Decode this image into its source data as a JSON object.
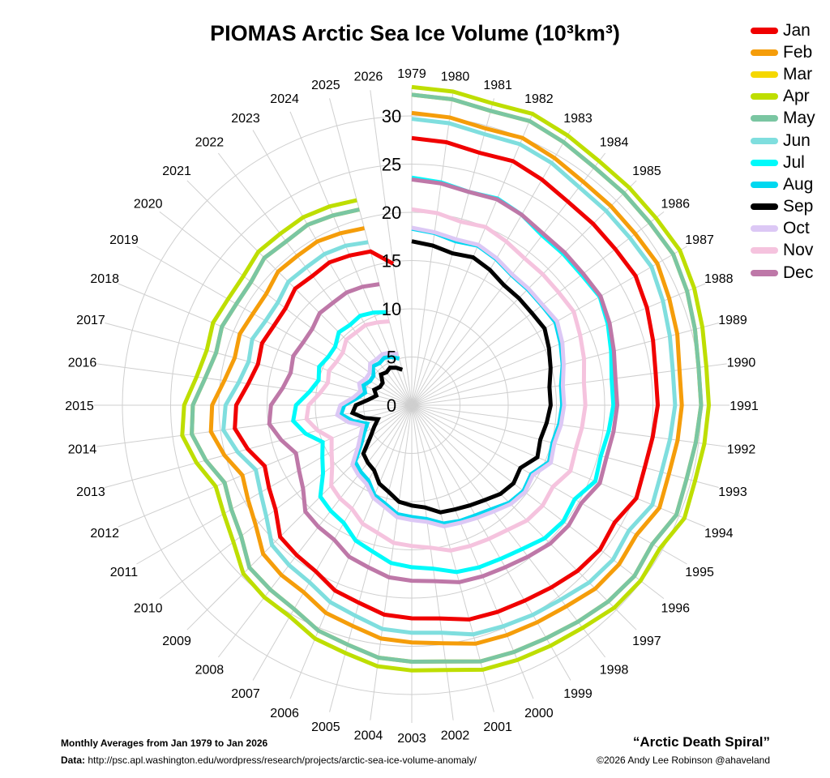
{
  "title": "PIOMAS Arctic Sea Ice Volume (10³km³)",
  "footer": {
    "range": "Monthly Averages from Jan 1979 to Jan 2026",
    "data_label": "Data:",
    "data_url": "http://psc.apl.washington.edu/wordpress/research/projects/arctic-sea-ice-volume-anomaly/",
    "subtitle": "“Arctic Death Spiral”",
    "credit": "©2026 Andy Lee Robinson @ahaveland"
  },
  "chart_data": {
    "type": "line",
    "projection": "polar-spiral",
    "title": "PIOMAS Arctic Sea Ice Volume (10³km³)",
    "radial_ticks": [
      "0",
      "5",
      "10",
      "15",
      "20",
      "25",
      "30"
    ],
    "radial_range": [
      0,
      35
    ],
    "grid": true,
    "legend_position": "top-right",
    "years": [
      1979,
      1980,
      1981,
      1982,
      1983,
      1984,
      1985,
      1986,
      1987,
      1988,
      1989,
      1990,
      1991,
      1992,
      1993,
      1994,
      1995,
      1996,
      1997,
      1998,
      1999,
      2000,
      2001,
      2002,
      2003,
      2004,
      2005,
      2006,
      2007,
      2008,
      2009,
      2010,
      2011,
      2012,
      2013,
      2014,
      2015,
      2016,
      2017,
      2018,
      2019,
      2020,
      2021,
      2022,
      2023,
      2024,
      2025,
      2026
    ],
    "series": [
      {
        "name": "Jan",
        "color": "#f00000",
        "values": [
          27.7,
          27.5,
          27.1,
          27.4,
          27.0,
          26.6,
          26.6,
          26.6,
          26.8,
          26.4,
          25.9,
          25.5,
          25.5,
          25.2,
          25.0,
          25.2,
          24.3,
          24.6,
          24.3,
          23.8,
          23.4,
          23.2,
          23.0,
          22.3,
          22.1,
          21.9,
          21.2,
          20.8,
          19.9,
          19.6,
          19.3,
          17.8,
          17.1,
          16.5,
          17.6,
          18.5,
          18.2,
          17.1,
          16.5,
          16.8,
          16.5,
          16.5,
          17.1,
          16.9,
          17.1,
          16.8,
          16.5,
          14.8
        ]
      },
      {
        "name": "Feb",
        "color": "#f59d0a",
        "values": [
          30.3,
          30.1,
          29.7,
          30.0,
          29.6,
          29.2,
          29.2,
          29.2,
          29.4,
          28.9,
          28.5,
          28.0,
          28.0,
          27.8,
          27.6,
          27.8,
          26.9,
          27.1,
          26.9,
          26.3,
          26.0,
          25.8,
          25.6,
          24.9,
          24.6,
          24.4,
          23.7,
          23.3,
          22.4,
          22.2,
          21.8,
          20.4,
          19.6,
          19.0,
          20.1,
          21.0,
          20.7,
          19.6,
          19.0,
          19.3,
          19.0,
          19.0,
          19.6,
          19.5,
          19.6,
          19.3,
          19.0,
          null
        ]
      },
      {
        "name": "Mar",
        "color": "#f5d800",
        "values": [
          32.2,
          32.0,
          31.6,
          31.9,
          31.5,
          31.1,
          31.1,
          31.1,
          31.3,
          30.9,
          30.4,
          30.0,
          30.0,
          29.7,
          29.5,
          29.7,
          28.8,
          29.1,
          28.8,
          28.3,
          27.9,
          27.7,
          27.5,
          26.8,
          26.6,
          26.4,
          25.7,
          25.3,
          24.4,
          24.1,
          23.8,
          22.3,
          21.6,
          21.0,
          22.1,
          23.0,
          22.7,
          21.6,
          21.0,
          21.3,
          21.0,
          21.0,
          21.6,
          21.4,
          21.6,
          21.3,
          21.0,
          null
        ]
      },
      {
        "name": "Apr",
        "color": "#bede00",
        "values": [
          33.0,
          32.8,
          32.4,
          32.7,
          32.3,
          31.9,
          31.9,
          31.9,
          32.1,
          31.7,
          31.2,
          30.8,
          30.8,
          30.6,
          30.4,
          30.6,
          29.7,
          29.9,
          29.7,
          29.1,
          28.8,
          28.6,
          28.4,
          27.7,
          27.5,
          27.3,
          26.6,
          26.2,
          25.3,
          25.1,
          24.7,
          23.3,
          22.5,
          22.0,
          23.1,
          24.0,
          23.6,
          22.5,
          22.0,
          22.3,
          22.0,
          22.0,
          22.5,
          22.4,
          22.5,
          22.3,
          22.0,
          null
        ]
      },
      {
        "name": "May",
        "color": "#7ac6a2",
        "values": [
          32.2,
          32.0,
          31.6,
          31.9,
          31.5,
          31.1,
          31.1,
          31.1,
          31.3,
          30.9,
          30.4,
          30.0,
          30.0,
          29.7,
          29.5,
          29.7,
          28.8,
          29.1,
          28.8,
          28.3,
          27.9,
          27.7,
          27.5,
          26.8,
          26.6,
          26.4,
          25.7,
          25.3,
          24.4,
          24.1,
          23.8,
          22.3,
          21.6,
          21.0,
          22.1,
          23.0,
          22.7,
          21.6,
          21.0,
          21.3,
          21.0,
          21.0,
          21.6,
          21.4,
          21.6,
          21.3,
          21.0,
          null
        ]
      },
      {
        "name": "Jun",
        "color": "#7fdede",
        "values": [
          29.7,
          29.5,
          29.1,
          29.3,
          29.0,
          28.5,
          28.5,
          28.5,
          28.7,
          28.2,
          27.7,
          27.3,
          27.3,
          27.0,
          26.8,
          27.0,
          26.0,
          26.3,
          26.0,
          25.4,
          25.1,
          24.8,
          24.6,
          23.8,
          23.6,
          23.4,
          22.6,
          22.1,
          21.2,
          20.9,
          20.5,
          19.0,
          18.1,
          17.5,
          18.7,
          19.7,
          19.3,
          18.1,
          17.5,
          17.9,
          17.5,
          17.5,
          18.1,
          18.0,
          18.1,
          17.9,
          17.5,
          null
        ]
      },
      {
        "name": "Jul",
        "color": "#00fafa",
        "values": [
          23.6,
          23.3,
          22.9,
          23.2,
          22.8,
          22.2,
          22.2,
          22.2,
          22.5,
          22.0,
          21.4,
          20.9,
          20.9,
          20.6,
          20.3,
          20.6,
          19.5,
          19.8,
          19.5,
          18.8,
          18.4,
          18.2,
          17.9,
          17.1,
          16.8,
          16.5,
          15.7,
          15.2,
          14.1,
          13.8,
          13.4,
          11.6,
          10.7,
          10.0,
          11.4,
          12.4,
          12.0,
          10.7,
          10.0,
          10.4,
          10.0,
          10.0,
          10.7,
          10.5,
          10.7,
          10.4,
          10.0,
          null
        ]
      },
      {
        "name": "Aug",
        "color": "#00d8f0",
        "values": [
          18.3,
          18.0,
          17.6,
          17.9,
          17.5,
          17.0,
          17.0,
          17.0,
          17.2,
          16.7,
          16.2,
          15.6,
          15.6,
          15.4,
          15.1,
          15.4,
          14.3,
          14.6,
          14.3,
          13.6,
          13.2,
          13.0,
          12.7,
          11.9,
          11.6,
          11.4,
          10.6,
          10.1,
          9.0,
          8.7,
          8.3,
          6.6,
          5.7,
          5.0,
          6.3,
          7.4,
          7.0,
          5.7,
          5.0,
          5.4,
          5.0,
          5.0,
          5.7,
          5.5,
          5.7,
          5.4,
          5.0,
          null
        ]
      },
      {
        "name": "Sep",
        "color": "#000000",
        "values": [
          17.0,
          16.7,
          16.3,
          16.6,
          16.2,
          15.7,
          15.7,
          15.7,
          15.9,
          15.4,
          14.9,
          14.4,
          14.4,
          14.1,
          13.8,
          14.1,
          13.0,
          13.3,
          13.0,
          12.4,
          12.0,
          11.7,
          11.5,
          10.7,
          10.4,
          10.1,
          9.3,
          8.8,
          7.8,
          7.5,
          7.1,
          5.4,
          4.5,
          3.8,
          5.1,
          6.2,
          5.8,
          4.5,
          3.8,
          4.2,
          3.8,
          3.8,
          4.5,
          4.3,
          4.5,
          4.2,
          3.8,
          null
        ]
      },
      {
        "name": "Oct",
        "color": "#dcc8f5",
        "values": [
          18.4,
          18.1,
          17.8,
          18.0,
          17.6,
          17.1,
          17.1,
          17.1,
          17.4,
          16.9,
          16.3,
          15.8,
          15.8,
          15.6,
          15.3,
          15.6,
          14.5,
          14.8,
          14.5,
          13.9,
          13.5,
          13.2,
          13.0,
          12.2,
          11.9,
          11.7,
          10.9,
          10.4,
          9.4,
          9.1,
          8.7,
          7.0,
          6.1,
          5.5,
          6.8,
          7.8,
          7.4,
          6.1,
          5.5,
          5.9,
          5.5,
          5.5,
          6.1,
          6.0,
          6.1,
          5.9,
          5.5,
          null
        ]
      },
      {
        "name": "Nov",
        "color": "#f5c3de",
        "values": [
          20.3,
          20.1,
          19.7,
          20.0,
          19.6,
          19.2,
          19.2,
          19.2,
          19.4,
          18.9,
          18.5,
          18.0,
          18.0,
          17.8,
          17.6,
          17.8,
          16.9,
          17.1,
          16.9,
          16.3,
          16.0,
          15.8,
          15.6,
          14.9,
          14.6,
          14.4,
          13.7,
          13.3,
          12.4,
          12.2,
          11.8,
          10.4,
          9.6,
          9.0,
          10.1,
          11.0,
          10.7,
          9.6,
          9.0,
          9.3,
          9.0,
          9.0,
          9.6,
          9.5,
          9.6,
          9.3,
          9.0,
          null
        ]
      },
      {
        "name": "Dec",
        "color": "#be78a8",
        "values": [
          23.4,
          23.2,
          22.9,
          23.1,
          22.8,
          22.4,
          22.4,
          22.4,
          22.6,
          22.2,
          21.7,
          21.3,
          21.3,
          21.1,
          20.9,
          21.1,
          20.3,
          20.5,
          20.3,
          19.8,
          19.4,
          19.2,
          19.0,
          18.4,
          18.2,
          18.0,
          17.4,
          17.0,
          16.1,
          15.9,
          15.6,
          14.2,
          13.5,
          13.0,
          14.0,
          14.9,
          14.6,
          13.5,
          13.0,
          13.3,
          13.0,
          13.0,
          13.5,
          13.4,
          13.5,
          13.3,
          13.0,
          null
        ]
      }
    ]
  }
}
